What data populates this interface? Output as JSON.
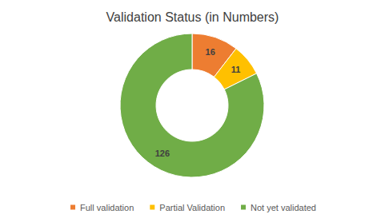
{
  "chart_data": {
    "type": "donut",
    "title": "Validation Status (in Numbers)",
    "categories": [
      "Full validation",
      "Partial Validation",
      "Not yet validated"
    ],
    "values": [
      16,
      11,
      126
    ],
    "colors": [
      "#ed7d31",
      "#ffc000",
      "#70ad47"
    ],
    "data_labels": true,
    "legend": "bottom"
  }
}
